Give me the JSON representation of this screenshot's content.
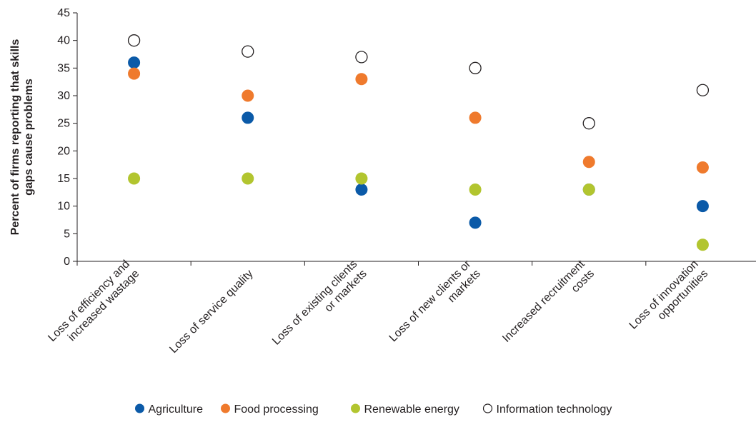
{
  "chart_data": {
    "type": "scatter",
    "ylabel": [
      "Percent of firms reporting that skills",
      "gaps cause problems"
    ],
    "xlabel": "",
    "ylim": [
      0,
      45
    ],
    "yticks": [
      0,
      5,
      10,
      15,
      20,
      25,
      30,
      35,
      40,
      45
    ],
    "grid": false,
    "legend_position": "bottom",
    "categories": [
      [
        "Loss of efficiency and",
        "increased wastage"
      ],
      [
        "Loss of service quality"
      ],
      [
        "Loss of existing clients",
        "or markets"
      ],
      [
        "Loss of new clients or",
        "markets"
      ],
      [
        "Increased recruitment",
        "costs"
      ],
      [
        "Loss of innovation",
        "opportunities"
      ]
    ],
    "series": [
      {
        "name": "Agriculture",
        "color": "#0b5aa8",
        "hollow": false,
        "values": [
          36,
          26,
          13,
          7,
          13,
          10
        ]
      },
      {
        "name": "Food processing",
        "color": "#ef7a2d",
        "hollow": false,
        "values": [
          34,
          30,
          33,
          26,
          18,
          17
        ]
      },
      {
        "name": "Renewable energy",
        "color": "#b2c52f",
        "hollow": false,
        "values": [
          15,
          15,
          15,
          13,
          13,
          3
        ]
      },
      {
        "name": "Information technology",
        "color": "#ffffff",
        "stroke": "#231f20",
        "hollow": true,
        "values": [
          40,
          38,
          37,
          35,
          25,
          31
        ]
      }
    ]
  }
}
